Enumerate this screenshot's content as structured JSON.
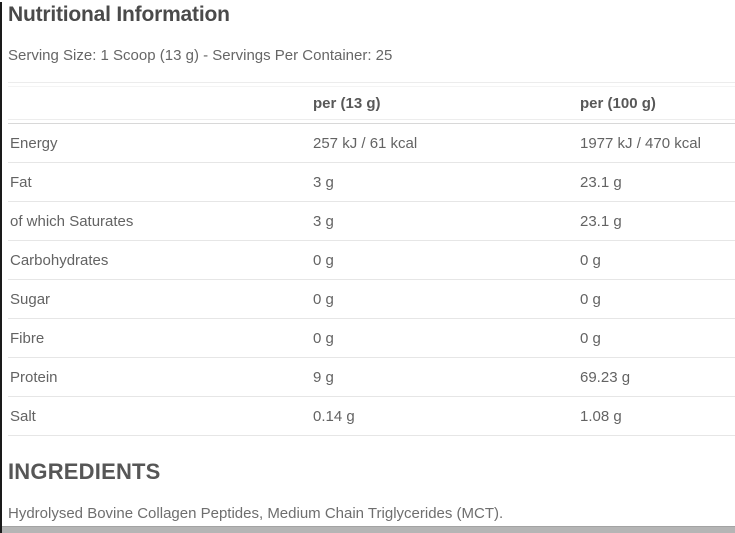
{
  "title": "Nutritional Information",
  "serving_info": "Serving Size: 1 Scoop (13 g) - Servings Per Container: 25",
  "table": {
    "columns": [
      "",
      "per (13 g)",
      "per (100 g)"
    ],
    "rows": [
      {
        "label": "Energy",
        "per_13g": "257 kJ / 61 kcal",
        "per_100g": "1977 kJ / 470 kcal"
      },
      {
        "label": "Fat",
        "per_13g": "3 g",
        "per_100g": "23.1 g"
      },
      {
        "label": "of which Saturates",
        "per_13g": "3 g",
        "per_100g": "23.1 g"
      },
      {
        "label": "Carbohydrates",
        "per_13g": "0 g",
        "per_100g": "0 g"
      },
      {
        "label": "Sugar",
        "per_13g": "0 g",
        "per_100g": "0 g"
      },
      {
        "label": "Fibre",
        "per_13g": "0 g",
        "per_100g": "0 g"
      },
      {
        "label": "Protein",
        "per_13g": "9 g",
        "per_100g": "69.23 g"
      },
      {
        "label": "Salt",
        "per_13g": "0.14 g",
        "per_100g": "1.08 g"
      }
    ]
  },
  "ingredients": {
    "heading": "INGREDIENTS",
    "text": "Hydrolysed Bovine Collagen Peptides, Medium Chain Triglycerides (MCT)."
  },
  "colors": {
    "title_text": "#4a4a4a",
    "body_text": "#636363",
    "row_divider": "#e6e6e6",
    "left_border": "#1a1a1a",
    "bottom_bar": "#b5b5b5"
  }
}
